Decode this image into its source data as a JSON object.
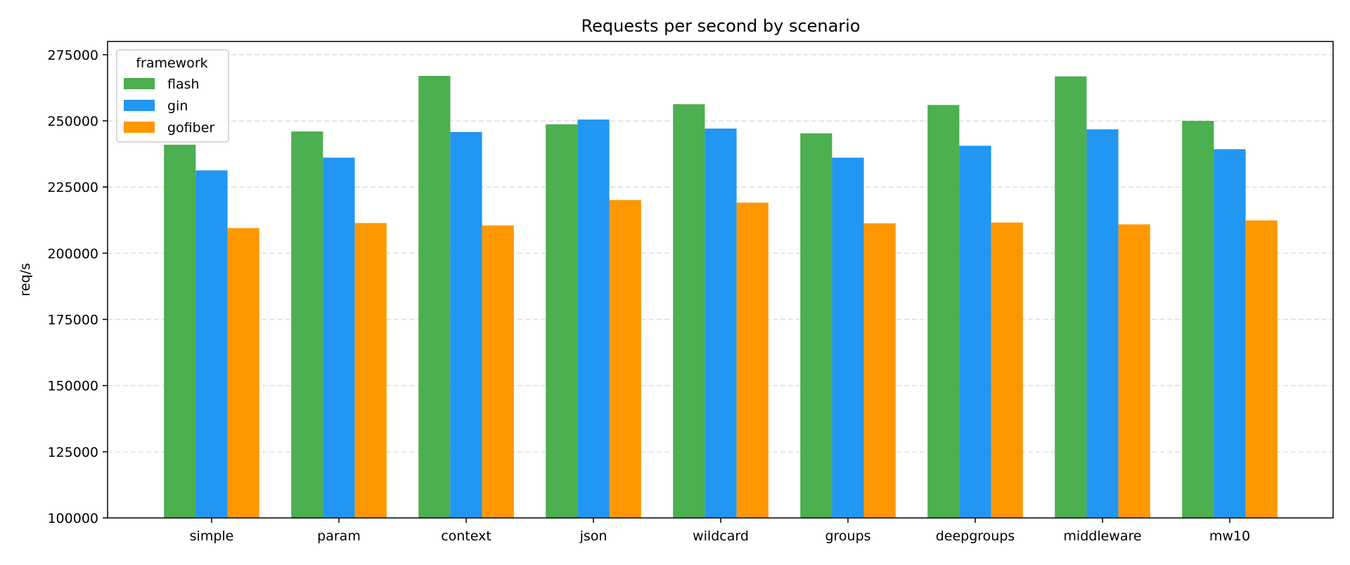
{
  "chart_data": {
    "type": "bar",
    "title": "Requests per second by scenario",
    "xlabel": "",
    "ylabel": "req/s",
    "ylim": [
      100000,
      280000
    ],
    "yticks": [
      100000,
      125000,
      150000,
      175000,
      200000,
      225000,
      250000,
      275000
    ],
    "grid": "y-dashed",
    "legend": {
      "title": "framework",
      "placement": "top-left"
    },
    "categories": [
      "simple",
      "param",
      "context",
      "json",
      "wildcard",
      "groups",
      "deepgroups",
      "middleware",
      "mw10"
    ],
    "series": [
      {
        "name": "flash",
        "color": "#4caf50",
        "values": [
          241000,
          246000,
          267000,
          248700,
          256300,
          245300,
          256000,
          266800,
          250000
        ]
      },
      {
        "name": "gin",
        "color": "#2196f3",
        "values": [
          231300,
          236100,
          245800,
          250500,
          247100,
          236100,
          240600,
          246800,
          239300
        ]
      },
      {
        "name": "gofiber",
        "color": "#ff9800",
        "values": [
          209500,
          211400,
          210500,
          220100,
          219100,
          211300,
          211600,
          210900,
          212400
        ]
      }
    ]
  }
}
